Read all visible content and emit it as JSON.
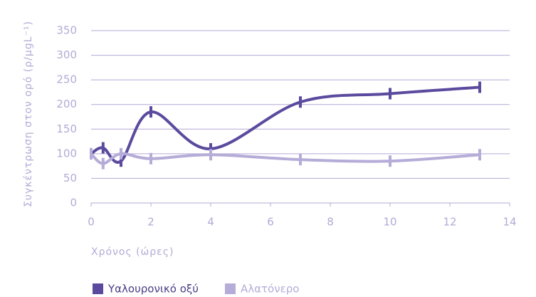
{
  "chart_data": {
    "type": "line",
    "x_label": "Χρόνος (ώρες)",
    "y_label": "Συγκέντρωση στον ορό (ρ/μgL⁻¹)",
    "x": [
      0,
      0.4,
      1,
      2,
      4,
      7,
      10,
      13
    ],
    "series": [
      {
        "name": "Υαλουρονικό οξύ",
        "color": "#5b4a9e",
        "values": [
          100,
          112,
          85,
          185,
          110,
          205,
          222,
          235
        ]
      },
      {
        "name": "Αλατόνερο",
        "color": "#b5acd8",
        "values": [
          100,
          80,
          100,
          90,
          98,
          88,
          85,
          98
        ]
      }
    ],
    "xlim": [
      0,
      14
    ],
    "xticks": [
      0,
      2,
      4,
      6,
      8,
      10,
      12,
      14
    ],
    "ylim": [
      0,
      350
    ],
    "yticks": [
      0,
      50,
      100,
      150,
      200,
      250,
      300,
      350
    ],
    "grid": true,
    "legend": "bottom"
  }
}
